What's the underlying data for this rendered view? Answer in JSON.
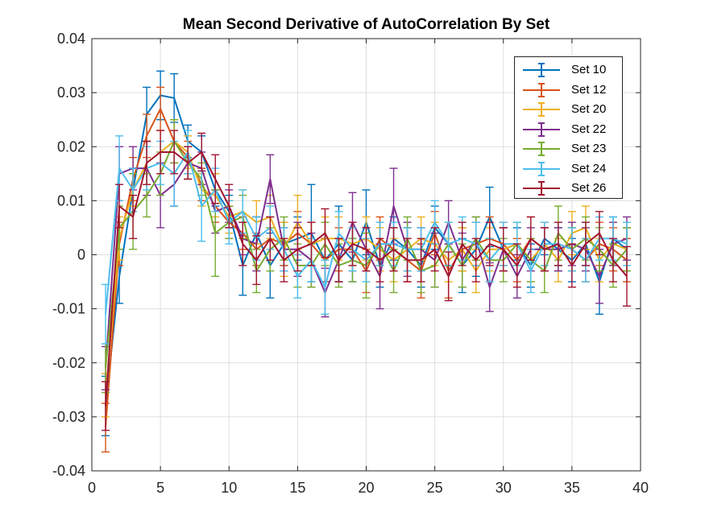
{
  "chart_data": {
    "type": "line",
    "title": "Mean Second Derivative of AutoCorrelation By Set",
    "xlabel": "",
    "ylabel": "",
    "xlim": [
      0,
      40
    ],
    "ylim": [
      -0.04,
      0.04
    ],
    "x_ticks": [
      "0",
      "5",
      "10",
      "15",
      "20",
      "25",
      "30",
      "35",
      "40"
    ],
    "y_ticks": [
      "-0.04",
      "-0.03",
      "-0.02",
      "-0.01",
      "0",
      "0.01",
      "0.02",
      "0.03",
      "0.04"
    ],
    "grid": true,
    "legend_position": "top-right",
    "error_bars": true,
    "x": [
      1,
      2,
      3,
      4,
      5,
      6,
      7,
      8,
      9,
      10,
      11,
      12,
      13,
      14,
      15,
      16,
      17,
      18,
      19,
      20,
      21,
      22,
      23,
      24,
      25,
      26,
      27,
      28,
      29,
      30,
      31,
      32,
      33,
      34,
      35,
      36,
      37,
      38,
      39
    ],
    "series": [
      {
        "name": "Set 10",
        "color": "#0072BD",
        "values": [
          -0.028,
          -0.004,
          0.012,
          0.026,
          0.0295,
          0.029,
          0.021,
          0.019,
          0.012,
          0.008,
          -0.002,
          0.004,
          -0.002,
          0.002,
          0.003,
          0.004,
          -0.001,
          0.002,
          -0.001,
          0.006,
          -0.002,
          0.003,
          0.001,
          -0.002,
          0.005,
          0.002,
          -0.002,
          0.001,
          0.007,
          0.001,
          0.002,
          -0.002,
          0.003,
          0.001,
          -0.001,
          0.002,
          -0.005,
          0.003,
          0.001
        ],
        "errors": [
          0.0055,
          0.005,
          0.004,
          0.005,
          0.0045,
          0.0045,
          0.003,
          0.003,
          0.003,
          0.003,
          0.0055,
          0.003,
          0.006,
          0.004,
          0.004,
          0.009,
          0.004,
          0.007,
          0.004,
          0.006,
          0.004,
          0.004,
          0.004,
          0.004,
          0.004,
          0.004,
          0.005,
          0.005,
          0.0055,
          0.004,
          0.003,
          0.004,
          0.003,
          0.004,
          0.004,
          0.004,
          0.006,
          0.004,
          0.004
        ]
      },
      {
        "name": "Set 12",
        "color": "#D95319",
        "values": [
          -0.032,
          0.002,
          0.014,
          0.022,
          0.027,
          0.021,
          0.018,
          0.013,
          0.009,
          0.006,
          0.004,
          0.001,
          0.003,
          0.002,
          0.004,
          0.002,
          -0.001,
          0.001,
          0.001,
          -0.003,
          0.003,
          0.001,
          -0.001,
          -0.003,
          0.004,
          -0.003,
          0.001,
          0.002,
          0.003,
          0.002,
          -0.001,
          0.003,
          0.001,
          0.002,
          0.001,
          -0.001,
          0.002,
          0.001,
          -0.001
        ],
        "errors": [
          0.0045,
          0.004,
          0.004,
          0.004,
          0.004,
          0.004,
          0.003,
          0.003,
          0.003,
          0.003,
          0.003,
          0.003,
          0.004,
          0.004,
          0.004,
          0.004,
          0.004,
          0.004,
          0.004,
          0.004,
          0.004,
          0.004,
          0.004,
          0.005,
          0.004,
          0.005,
          0.004,
          0.004,
          0.004,
          0.004,
          0.004,
          0.004,
          0.004,
          0.004,
          0.004,
          0.004,
          0.004,
          0.004,
          0.004
        ]
      },
      {
        "name": "Set 20",
        "color": "#EDB120",
        "values": [
          -0.026,
          0.003,
          0.012,
          0.017,
          0.019,
          0.021,
          0.019,
          0.012,
          0.011,
          0.007,
          0.008,
          0.006,
          0.007,
          0.001,
          0.006,
          0.002,
          0.003,
          0.003,
          0.002,
          0.003,
          0.001,
          -0.001,
          0.001,
          0.003,
          0.002,
          -0.001,
          0.001,
          -0.003,
          0.001,
          0.001,
          0.002,
          -0.001,
          0.002,
          -0.001,
          0.004,
          0.005,
          -0.001,
          0.002,
          0.001
        ],
        "errors": [
          0.004,
          0.004,
          0.003,
          0.004,
          0.004,
          0.004,
          0.003,
          0.003,
          0.004,
          0.003,
          0.004,
          0.004,
          0.004,
          0.005,
          0.005,
          0.004,
          0.004,
          0.004,
          0.004,
          0.004,
          0.004,
          0.004,
          0.004,
          0.004,
          0.004,
          0.004,
          0.004,
          0.004,
          0.004,
          0.004,
          0.004,
          0.004,
          0.004,
          0.004,
          0.004,
          0.004,
          0.004,
          0.004,
          0.004
        ]
      },
      {
        "name": "Set 22",
        "color": "#7E2F8E",
        "values": [
          -0.021,
          0.015,
          0.016,
          0.016,
          0.011,
          0.013,
          0.017,
          0.016,
          0.008,
          0.009,
          0.003,
          0.002,
          0.014,
          0.001,
          0.001,
          -0.001,
          -0.007,
          -0.001,
          0.006,
          0.001,
          -0.004,
          0.009,
          0.001,
          0.001,
          -0.001,
          0.006,
          -0.001,
          0.003,
          -0.006,
          0.001,
          -0.004,
          0.001,
          0.001,
          0.001,
          0.002,
          0.001,
          -0.004,
          0.002,
          0.003
        ],
        "errors": [
          0.004,
          0.005,
          0.004,
          0.005,
          0.006,
          0.004,
          0.003,
          0.003,
          0.004,
          0.003,
          0.003,
          0.005,
          0.0045,
          0.004,
          0.005,
          0.005,
          0.0045,
          0.004,
          0.0055,
          0.004,
          0.006,
          0.007,
          0.005,
          0.004,
          0.005,
          0.004,
          0.005,
          0.004,
          0.0045,
          0.004,
          0.004,
          0.004,
          0.004,
          0.004,
          0.004,
          0.004,
          0.005,
          0.004,
          0.004
        ]
      },
      {
        "name": "Set 23",
        "color": "#77AC30",
        "values": [
          -0.021,
          0.005,
          0.008,
          0.011,
          0.015,
          0.021,
          0.017,
          0.014,
          0.004,
          0.006,
          0.007,
          -0.003,
          0.001,
          0.003,
          -0.002,
          -0.002,
          0.002,
          -0.002,
          -0.001,
          -0.002,
          0.002,
          -0.003,
          0.003,
          -0.003,
          -0.002,
          0.002,
          -0.002,
          0.003,
          -0.001,
          -0.001,
          0.002,
          -0.001,
          -0.003,
          0.004,
          0.001,
          0.003,
          0.001,
          -0.002,
          0.001
        ],
        "errors": [
          0.0045,
          0.004,
          0.007,
          0.004,
          0.004,
          0.004,
          0.003,
          0.003,
          0.008,
          0.003,
          0.004,
          0.004,
          0.004,
          0.004,
          0.004,
          0.004,
          0.004,
          0.004,
          0.004,
          0.006,
          0.004,
          0.004,
          0.004,
          0.004,
          0.004,
          0.004,
          0.004,
          0.004,
          0.004,
          0.004,
          0.004,
          0.004,
          0.004,
          0.005,
          0.004,
          0.004,
          0.004,
          0.004,
          0.004
        ]
      },
      {
        "name": "Set 24",
        "color": "#4DBEEE",
        "values": [
          -0.011,
          0.016,
          0.012,
          0.016,
          0.017,
          0.015,
          0.019,
          0.009,
          0.012,
          0.006,
          0.008,
          0.003,
          0.005,
          0.001,
          -0.004,
          -0.001,
          -0.006,
          0.004,
          0.001,
          -0.001,
          0.002,
          0.002,
          0.001,
          0.001,
          0.006,
          0.002,
          0.003,
          0.002,
          -0.001,
          0.002,
          0.002,
          -0.003,
          0.002,
          0.002,
          0.001,
          -0.001,
          0.003,
          0.003,
          0.002
        ],
        "errors": [
          0.0055,
          0.006,
          0.004,
          0.004,
          0.004,
          0.006,
          0.004,
          0.0065,
          0.004,
          0.004,
          0.004,
          0.004,
          0.004,
          0.004,
          0.004,
          0.004,
          0.005,
          0.004,
          0.004,
          0.004,
          0.004,
          0.004,
          0.004,
          0.004,
          0.004,
          0.004,
          0.004,
          0.004,
          0.004,
          0.004,
          0.004,
          0.004,
          0.004,
          0.004,
          0.004,
          0.004,
          0.004,
          0.004,
          0.004
        ]
      },
      {
        "name": "Set 26",
        "color": "#A2142F",
        "values": [
          -0.028,
          0.009,
          0.007,
          0.017,
          0.019,
          0.019,
          0.017,
          0.019,
          0.014,
          0.009,
          0.002,
          -0.001,
          0.003,
          -0.001,
          0.001,
          0.002,
          0.004,
          -0.001,
          0.002,
          0.001,
          -0.001,
          0.001,
          -0.001,
          -0.001,
          0.001,
          -0.004,
          0.002,
          -0.001,
          0.002,
          0.001,
          -0.002,
          0.003,
          0.001,
          0.002,
          -0.002,
          0.002,
          0.004,
          -0.001,
          -0.004
        ],
        "errors": [
          0.0045,
          0.004,
          0.004,
          0.004,
          0.004,
          0.004,
          0.003,
          0.0035,
          0.0045,
          0.004,
          0.004,
          0.0045,
          0.004,
          0.004,
          0.004,
          0.004,
          0.0045,
          0.004,
          0.004,
          0.004,
          0.004,
          0.004,
          0.004,
          0.004,
          0.004,
          0.0045,
          0.004,
          0.004,
          0.004,
          0.004,
          0.004,
          0.004,
          0.004,
          0.004,
          0.004,
          0.004,
          0.004,
          0.004,
          0.0055
        ]
      }
    ]
  }
}
